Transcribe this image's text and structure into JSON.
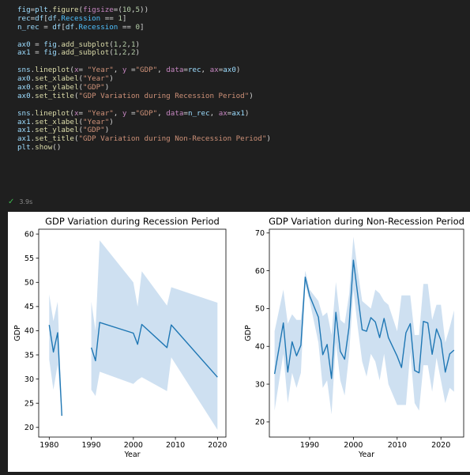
{
  "code_lines": [
    [
      [
        "fig",
        "var"
      ],
      [
        "=",
        "plain"
      ],
      [
        "plt",
        "var"
      ],
      [
        ".",
        "plain"
      ],
      [
        "figure",
        "fn"
      ],
      [
        "(",
        "plain"
      ],
      [
        "figsize",
        "param"
      ],
      [
        "=(",
        "plain"
      ],
      [
        "10",
        "num"
      ],
      [
        ",",
        "plain"
      ],
      [
        "5",
        "num"
      ],
      [
        "))",
        "plain"
      ]
    ],
    [
      [
        "rec",
        "var"
      ],
      [
        "=",
        "plain"
      ],
      [
        "df",
        "var"
      ],
      [
        "[",
        "plain"
      ],
      [
        "df",
        "var"
      ],
      [
        ".",
        "plain"
      ],
      [
        "Recession",
        "prop"
      ],
      [
        " == ",
        "plain"
      ],
      [
        "1",
        "num"
      ],
      [
        "]",
        "plain"
      ]
    ],
    [
      [
        "n_rec",
        "var"
      ],
      [
        " = ",
        "plain"
      ],
      [
        "df",
        "var"
      ],
      [
        "[",
        "plain"
      ],
      [
        "df",
        "var"
      ],
      [
        ".",
        "plain"
      ],
      [
        "Recession",
        "prop"
      ],
      [
        " == ",
        "plain"
      ],
      [
        "0",
        "num"
      ],
      [
        "]",
        "plain"
      ]
    ],
    [],
    [
      [
        "ax0",
        "var"
      ],
      [
        " = ",
        "plain"
      ],
      [
        "fig",
        "var"
      ],
      [
        ".",
        "plain"
      ],
      [
        "add_subplot",
        "fn"
      ],
      [
        "(",
        "plain"
      ],
      [
        "1",
        "num"
      ],
      [
        ",",
        "plain"
      ],
      [
        "2",
        "num"
      ],
      [
        ",",
        "plain"
      ],
      [
        "1",
        "num"
      ],
      [
        ")",
        "plain"
      ]
    ],
    [
      [
        "ax1",
        "var"
      ],
      [
        " = ",
        "plain"
      ],
      [
        "fig",
        "var"
      ],
      [
        ".",
        "plain"
      ],
      [
        "add_subplot",
        "fn"
      ],
      [
        "(",
        "plain"
      ],
      [
        "1",
        "num"
      ],
      [
        ",",
        "plain"
      ],
      [
        "2",
        "num"
      ],
      [
        ",",
        "plain"
      ],
      [
        "2",
        "num"
      ],
      [
        ")",
        "plain"
      ]
    ],
    [],
    [
      [
        "sns",
        "var"
      ],
      [
        ".",
        "plain"
      ],
      [
        "lineplot",
        "fn"
      ],
      [
        "(",
        "plain"
      ],
      [
        "x",
        "param"
      ],
      [
        "= ",
        "plain"
      ],
      [
        "\"Year\"",
        "str"
      ],
      [
        ", ",
        "plain"
      ],
      [
        "y",
        "param"
      ],
      [
        " =",
        "plain"
      ],
      [
        "\"GDP\"",
        "str"
      ],
      [
        ", ",
        "plain"
      ],
      [
        "data",
        "param"
      ],
      [
        "=",
        "plain"
      ],
      [
        "rec",
        "var"
      ],
      [
        ", ",
        "plain"
      ],
      [
        "ax",
        "param"
      ],
      [
        "=",
        "plain"
      ],
      [
        "ax0",
        "var"
      ],
      [
        ")",
        "plain"
      ]
    ],
    [
      [
        "ax0",
        "var"
      ],
      [
        ".",
        "plain"
      ],
      [
        "set_xlabel",
        "fn"
      ],
      [
        "(",
        "plain"
      ],
      [
        "\"Year\"",
        "str"
      ],
      [
        ")",
        "plain"
      ]
    ],
    [
      [
        "ax0",
        "var"
      ],
      [
        ".",
        "plain"
      ],
      [
        "set_ylabel",
        "fn"
      ],
      [
        "(",
        "plain"
      ],
      [
        "\"GDP\"",
        "str"
      ],
      [
        ")",
        "plain"
      ]
    ],
    [
      [
        "ax0",
        "var"
      ],
      [
        ".",
        "plain"
      ],
      [
        "set_title",
        "fn"
      ],
      [
        "(",
        "plain"
      ],
      [
        "\"GDP Variation during Recession Period\"",
        "str"
      ],
      [
        ")",
        "plain"
      ]
    ],
    [],
    [
      [
        "sns",
        "var"
      ],
      [
        ".",
        "plain"
      ],
      [
        "lineplot",
        "fn"
      ],
      [
        "(",
        "plain"
      ],
      [
        "x",
        "param"
      ],
      [
        "= ",
        "plain"
      ],
      [
        "\"Year\"",
        "str"
      ],
      [
        ", ",
        "plain"
      ],
      [
        "y",
        "param"
      ],
      [
        " =",
        "plain"
      ],
      [
        "\"GDP\"",
        "str"
      ],
      [
        ", ",
        "plain"
      ],
      [
        "data",
        "param"
      ],
      [
        "=",
        "plain"
      ],
      [
        "n_rec",
        "var"
      ],
      [
        ", ",
        "plain"
      ],
      [
        "ax",
        "param"
      ],
      [
        "=",
        "plain"
      ],
      [
        "ax1",
        "var"
      ],
      [
        ")",
        "plain"
      ]
    ],
    [
      [
        "ax1",
        "var"
      ],
      [
        ".",
        "plain"
      ],
      [
        "set_xlabel",
        "fn"
      ],
      [
        "(",
        "plain"
      ],
      [
        "\"Year\"",
        "str"
      ],
      [
        ")",
        "plain"
      ]
    ],
    [
      [
        "ax1",
        "var"
      ],
      [
        ".",
        "plain"
      ],
      [
        "set_ylabel",
        "fn"
      ],
      [
        "(",
        "plain"
      ],
      [
        "\"GDP\"",
        "str"
      ],
      [
        ")",
        "plain"
      ]
    ],
    [
      [
        "ax1",
        "var"
      ],
      [
        ".",
        "plain"
      ],
      [
        "set_title",
        "fn"
      ],
      [
        "(",
        "plain"
      ],
      [
        "\"GDP Variation during Non-Recession Period\"",
        "str"
      ],
      [
        ")",
        "plain"
      ]
    ],
    [
      [
        "plt",
        "var"
      ],
      [
        ".",
        "plain"
      ],
      [
        "show",
        "fn"
      ],
      [
        "()",
        "plain"
      ]
    ]
  ],
  "cell_status": {
    "icon": "check-icon",
    "duration": "3.9s"
  },
  "colors": {
    "line": "#1f77b4",
    "band": "#c6dbee"
  },
  "chart_data": [
    {
      "type": "line",
      "title": "GDP Variation during Recession Period",
      "xlabel": "Year",
      "ylabel": "GDP",
      "xlim": [
        1977.5,
        2022
      ],
      "ylim": [
        18,
        61
      ],
      "xticks": [
        1980,
        1990,
        2000,
        2010,
        2020
      ],
      "yticks": [
        20,
        25,
        30,
        35,
        40,
        45,
        50,
        55,
        60
      ],
      "segments": [
        {
          "x": [
            1980,
            1981,
            1982,
            1983
          ],
          "y": [
            41.2,
            35.6,
            39.6,
            22.4
          ],
          "upper": [
            47.5,
            42,
            46,
            22.4
          ],
          "lower": [
            34,
            27.8,
            33,
            22.4
          ]
        },
        {
          "x": [
            1990,
            1991,
            1992,
            2000,
            2001,
            2002,
            2008,
            2009,
            2020
          ],
          "y": [
            36.5,
            33.8,
            41.7,
            39.5,
            37.2,
            41.3,
            36.5,
            41.2,
            30.4
          ],
          "upper": [
            46,
            40,
            58.7,
            50,
            45,
            52.3,
            45.2,
            49,
            45.8
          ],
          "lower": [
            27.8,
            26.5,
            31.5,
            29,
            29.8,
            30.4,
            27.5,
            34.5,
            19.5
          ]
        }
      ]
    },
    {
      "type": "line",
      "title": "GDP Variation during Non-Recession Period",
      "xlabel": "Year",
      "ylabel": "GDP",
      "xlim": [
        1980.8,
        2025.2
      ],
      "ylim": [
        16,
        71
      ],
      "xticks": [
        1990,
        2000,
        2010,
        2020
      ],
      "yticks": [
        20,
        30,
        40,
        50,
        60,
        70
      ],
      "x": [
        1982,
        1984,
        1985,
        1986,
        1987,
        1988,
        1989,
        1990,
        1992,
        1993,
        1994,
        1995,
        1996,
        1997,
        1998,
        1999,
        2000,
        2001,
        2002,
        2003,
        2004,
        2005,
        2006,
        2007,
        2008,
        2010,
        2011,
        2012,
        2013,
        2014,
        2015,
        2016,
        2017,
        2018,
        2019,
        2020,
        2021,
        2022,
        2023
      ],
      "y": [
        32.7,
        46.2,
        33.2,
        41.2,
        37.5,
        40.3,
        58.3,
        53.4,
        47.7,
        37.8,
        40.5,
        31.5,
        49,
        38.7,
        36.6,
        45,
        62.8,
        53.6,
        44.4,
        44.0,
        47.6,
        46.5,
        42.3,
        47.4,
        42.3,
        37.4,
        34.4,
        43.6,
        46,
        33.6,
        33,
        46.6,
        46.2,
        37.9,
        44.6,
        41.6,
        33.2,
        38,
        39
      ],
      "upper": [
        44,
        55,
        46,
        48.5,
        47,
        47,
        60,
        55,
        52,
        48,
        49,
        43,
        57,
        47,
        46,
        53.5,
        69,
        60,
        52,
        51,
        50,
        55,
        54,
        52,
        51,
        44,
        53.5,
        53.5,
        53.5,
        43,
        43,
        56.5,
        56.5,
        47,
        51,
        51,
        41,
        45,
        49.5
      ],
      "lower": [
        23,
        38,
        25,
        33,
        29,
        33,
        56.5,
        52,
        41,
        29,
        31,
        22,
        41,
        31,
        27,
        37.5,
        55,
        45,
        36,
        32,
        38,
        36,
        31,
        38,
        30,
        24.5,
        24.5,
        24.5,
        38.5,
        25,
        23,
        35,
        35,
        28,
        37,
        31,
        25,
        29,
        28
      ]
    }
  ]
}
